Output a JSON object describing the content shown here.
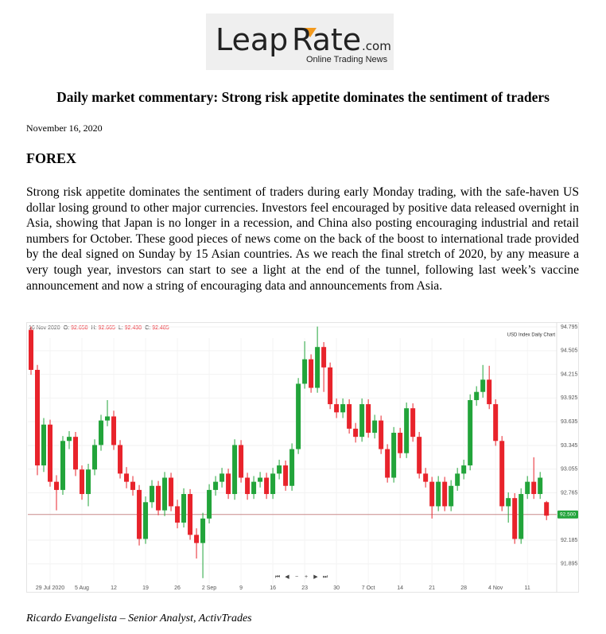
{
  "logo": {
    "brand": "Leap",
    "brand2": "Rate",
    "suffix": ".com",
    "tagline": "Online Trading News"
  },
  "title": "Daily market commentary: Strong risk appetite dominates the sentiment of traders",
  "date": "November 16, 2020",
  "heading": "FOREX",
  "body": "Strong risk appetite dominates the sentiment of traders during early Monday trading, with the safe-haven US dollar losing ground to other major currencies. Investors feel encouraged by positive data released overnight in Asia, showing that Japan is no longer in a recession, and China also posting encouraging industrial and retail numbers for October. These good pieces of news come on the back of the boost to international trade provided by the deal signed on Sunday by 15 Asian countries. As we reach the final stretch of 2020, by any measure a very tough year, investors can start to see a light at the end of the tunnel, following last week’s vaccine announcement and now a string of encouraging data and announcements from Asia.",
  "author": "Ricardo Evangelista – Senior Analyst, ActivTrades",
  "chart_data": {
    "type": "candlestick",
    "title": "USD Index Daily Chart",
    "info_date": "16 Nov 2020",
    "info": [
      {
        "label": "O:",
        "text": "92.650"
      },
      {
        "label": "H:",
        "text": "92.665"
      },
      {
        "label": "L:",
        "text": "92.430"
      },
      {
        "label": "C:",
        "text": "92.485"
      }
    ],
    "up_color": "#22a43a",
    "down_color": "#e8232b",
    "open": [
      94.76,
      94.27,
      93.1,
      93.6,
      92.9,
      92.8,
      93.4,
      93.45,
      93.05,
      92.75,
      93.05,
      93.35,
      93.65,
      93.7,
      93.35,
      93.0,
      92.9,
      92.8,
      92.2,
      92.65,
      92.85,
      92.55,
      92.95,
      92.6,
      92.4,
      92.75,
      92.25,
      92.15,
      92.45,
      92.8,
      92.9,
      93.0,
      92.75,
      93.35,
      92.95,
      92.75,
      92.9,
      92.95,
      92.75,
      93.0,
      93.1,
      92.85,
      93.3,
      94.1,
      94.4,
      94.05,
      94.55,
      94.3,
      93.85,
      93.75,
      93.85,
      93.55,
      93.45,
      93.85,
      93.5,
      93.65,
      93.3,
      92.95,
      93.5,
      93.25,
      93.8,
      93.45,
      93.0,
      92.9,
      92.6,
      92.9,
      92.6,
      92.85,
      93.0,
      93.1,
      93.9,
      94.0,
      94.15,
      93.85,
      93.4,
      92.6,
      92.7,
      92.2,
      92.75,
      92.9,
      92.75,
      92.65
    ],
    "high": [
      94.8,
      94.33,
      93.68,
      93.66,
      92.98,
      93.46,
      93.52,
      93.51,
      93.1,
      93.12,
      93.42,
      93.72,
      93.9,
      93.77,
      93.41,
      93.08,
      92.97,
      92.86,
      92.72,
      92.92,
      92.91,
      93.02,
      93.01,
      92.68,
      92.82,
      92.81,
      92.33,
      92.52,
      92.87,
      92.97,
      93.07,
      93.06,
      93.42,
      93.41,
      93.01,
      92.97,
      93.02,
      93.01,
      93.07,
      93.17,
      93.16,
      93.37,
      94.17,
      94.62,
      94.46,
      94.8,
      94.61,
      94.36,
      93.92,
      93.92,
      93.91,
      93.62,
      93.92,
      93.91,
      93.72,
      93.71,
      93.36,
      93.57,
      93.56,
      93.87,
      93.86,
      93.51,
      93.07,
      92.96,
      92.97,
      92.96,
      92.92,
      93.07,
      93.17,
      93.97,
      94.07,
      94.33,
      94.32,
      93.91,
      93.46,
      92.77,
      92.76,
      92.82,
      92.97,
      93.2,
      93.02,
      92.665
    ],
    "low": [
      94.21,
      92.98,
      93.02,
      92.84,
      92.55,
      92.74,
      93.3,
      92.97,
      92.68,
      92.6,
      92.98,
      93.28,
      93.58,
      93.29,
      92.94,
      92.82,
      92.73,
      92.12,
      92.14,
      92.58,
      92.49,
      92.48,
      92.54,
      92.33,
      92.34,
      92.19,
      91.96,
      91.72,
      92.39,
      92.73,
      92.83,
      92.69,
      92.68,
      92.89,
      92.68,
      92.69,
      92.83,
      92.69,
      92.69,
      92.93,
      92.79,
      92.79,
      93.24,
      94.04,
      93.99,
      93.99,
      94.0,
      93.79,
      93.68,
      93.68,
      93.49,
      93.38,
      93.39,
      93.44,
      93.43,
      93.24,
      92.89,
      92.89,
      93.19,
      93.19,
      93.39,
      92.94,
      92.83,
      92.45,
      92.54,
      92.54,
      92.54,
      92.79,
      92.93,
      93.04,
      93.83,
      93.93,
      93.79,
      93.34,
      92.54,
      92.4,
      92.14,
      92.14,
      92.69,
      92.69,
      92.69,
      92.43
    ],
    "close": [
      94.27,
      93.1,
      93.6,
      92.9,
      92.8,
      93.4,
      93.45,
      93.05,
      92.75,
      93.05,
      93.35,
      93.65,
      93.7,
      93.35,
      93.0,
      92.9,
      92.8,
      92.2,
      92.65,
      92.85,
      92.55,
      92.95,
      92.6,
      92.4,
      92.75,
      92.25,
      92.15,
      92.45,
      92.8,
      92.9,
      93.0,
      92.75,
      93.35,
      92.95,
      92.75,
      92.9,
      92.95,
      92.75,
      93.0,
      93.1,
      92.85,
      93.3,
      94.1,
      94.4,
      94.05,
      94.55,
      94.3,
      93.85,
      93.75,
      93.85,
      93.55,
      93.45,
      93.85,
      93.5,
      93.65,
      93.3,
      92.95,
      93.5,
      93.25,
      93.8,
      93.45,
      93.0,
      92.9,
      92.6,
      92.9,
      92.6,
      92.85,
      93.0,
      93.1,
      93.9,
      94.0,
      94.15,
      93.85,
      93.4,
      92.6,
      92.7,
      92.2,
      92.75,
      92.9,
      92.75,
      92.95,
      92.485
    ],
    "xlim": [
      -0.5,
      82.6
    ],
    "xticks": [
      {
        "value": 3,
        "label": "29 Jul 2020"
      },
      {
        "value": 8,
        "label": "5 Aug"
      },
      {
        "value": 13,
        "label": "12"
      },
      {
        "value": 18,
        "label": "19"
      },
      {
        "value": 23,
        "label": "26"
      },
      {
        "value": 28,
        "label": "2 Sep"
      },
      {
        "value": 33,
        "label": "9"
      },
      {
        "value": 38,
        "label": "16"
      },
      {
        "value": 43,
        "label": "23"
      },
      {
        "value": 48,
        "label": "30"
      },
      {
        "value": 53,
        "label": "7 Oct"
      },
      {
        "value": 58,
        "label": "14"
      },
      {
        "value": 63,
        "label": "21"
      },
      {
        "value": 68,
        "label": "28"
      },
      {
        "value": 73,
        "label": "4 Nov"
      },
      {
        "value": 78,
        "label": "11"
      }
    ],
    "ylim": [
      91.64,
      94.854
    ],
    "yticks": [
      94.795,
      94.505,
      94.215,
      93.925,
      93.635,
      93.345,
      93.055,
      92.765,
      92.185,
      91.895
    ],
    "price_line": {
      "value": 92.5,
      "label": "92.500"
    },
    "controls": [
      "⏮",
      "◀",
      "−",
      "+",
      "▶",
      "⏭"
    ],
    "grid": true
  }
}
